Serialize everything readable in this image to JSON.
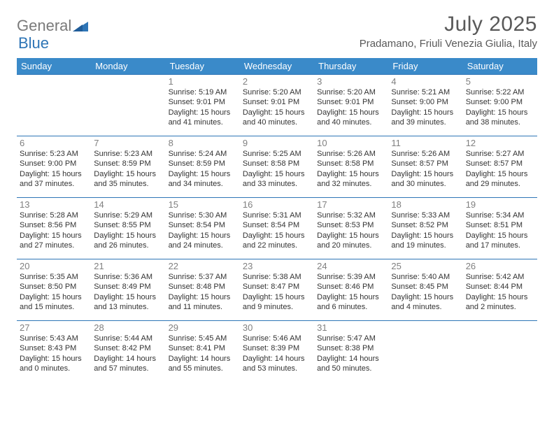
{
  "brand": {
    "part1": "General",
    "part2": "Blue"
  },
  "title": "July 2025",
  "location": "Pradamano, Friuli Venezia Giulia, Italy",
  "colors": {
    "header_bg": "#3a8ac9",
    "header_text": "#ffffff",
    "cell_border": "#2e75b6",
    "daynum": "#808080",
    "body_text": "#333333",
    "title_text": "#595959",
    "brand_gray": "#7a7a7a",
    "brand_blue": "#2e75b6",
    "page_bg": "#ffffff"
  },
  "day_headers": [
    "Sunday",
    "Monday",
    "Tuesday",
    "Wednesday",
    "Thursday",
    "Friday",
    "Saturday"
  ],
  "weeks": [
    [
      {
        "n": "",
        "l1": "",
        "l2": "",
        "l3": "",
        "l4": ""
      },
      {
        "n": "",
        "l1": "",
        "l2": "",
        "l3": "",
        "l4": ""
      },
      {
        "n": "1",
        "l1": "Sunrise: 5:19 AM",
        "l2": "Sunset: 9:01 PM",
        "l3": "Daylight: 15 hours",
        "l4": "and 41 minutes."
      },
      {
        "n": "2",
        "l1": "Sunrise: 5:20 AM",
        "l2": "Sunset: 9:01 PM",
        "l3": "Daylight: 15 hours",
        "l4": "and 40 minutes."
      },
      {
        "n": "3",
        "l1": "Sunrise: 5:20 AM",
        "l2": "Sunset: 9:01 PM",
        "l3": "Daylight: 15 hours",
        "l4": "and 40 minutes."
      },
      {
        "n": "4",
        "l1": "Sunrise: 5:21 AM",
        "l2": "Sunset: 9:00 PM",
        "l3": "Daylight: 15 hours",
        "l4": "and 39 minutes."
      },
      {
        "n": "5",
        "l1": "Sunrise: 5:22 AM",
        "l2": "Sunset: 9:00 PM",
        "l3": "Daylight: 15 hours",
        "l4": "and 38 minutes."
      }
    ],
    [
      {
        "n": "6",
        "l1": "Sunrise: 5:23 AM",
        "l2": "Sunset: 9:00 PM",
        "l3": "Daylight: 15 hours",
        "l4": "and 37 minutes."
      },
      {
        "n": "7",
        "l1": "Sunrise: 5:23 AM",
        "l2": "Sunset: 8:59 PM",
        "l3": "Daylight: 15 hours",
        "l4": "and 35 minutes."
      },
      {
        "n": "8",
        "l1": "Sunrise: 5:24 AM",
        "l2": "Sunset: 8:59 PM",
        "l3": "Daylight: 15 hours",
        "l4": "and 34 minutes."
      },
      {
        "n": "9",
        "l1": "Sunrise: 5:25 AM",
        "l2": "Sunset: 8:58 PM",
        "l3": "Daylight: 15 hours",
        "l4": "and 33 minutes."
      },
      {
        "n": "10",
        "l1": "Sunrise: 5:26 AM",
        "l2": "Sunset: 8:58 PM",
        "l3": "Daylight: 15 hours",
        "l4": "and 32 minutes."
      },
      {
        "n": "11",
        "l1": "Sunrise: 5:26 AM",
        "l2": "Sunset: 8:57 PM",
        "l3": "Daylight: 15 hours",
        "l4": "and 30 minutes."
      },
      {
        "n": "12",
        "l1": "Sunrise: 5:27 AM",
        "l2": "Sunset: 8:57 PM",
        "l3": "Daylight: 15 hours",
        "l4": "and 29 minutes."
      }
    ],
    [
      {
        "n": "13",
        "l1": "Sunrise: 5:28 AM",
        "l2": "Sunset: 8:56 PM",
        "l3": "Daylight: 15 hours",
        "l4": "and 27 minutes."
      },
      {
        "n": "14",
        "l1": "Sunrise: 5:29 AM",
        "l2": "Sunset: 8:55 PM",
        "l3": "Daylight: 15 hours",
        "l4": "and 26 minutes."
      },
      {
        "n": "15",
        "l1": "Sunrise: 5:30 AM",
        "l2": "Sunset: 8:54 PM",
        "l3": "Daylight: 15 hours",
        "l4": "and 24 minutes."
      },
      {
        "n": "16",
        "l1": "Sunrise: 5:31 AM",
        "l2": "Sunset: 8:54 PM",
        "l3": "Daylight: 15 hours",
        "l4": "and 22 minutes."
      },
      {
        "n": "17",
        "l1": "Sunrise: 5:32 AM",
        "l2": "Sunset: 8:53 PM",
        "l3": "Daylight: 15 hours",
        "l4": "and 20 minutes."
      },
      {
        "n": "18",
        "l1": "Sunrise: 5:33 AM",
        "l2": "Sunset: 8:52 PM",
        "l3": "Daylight: 15 hours",
        "l4": "and 19 minutes."
      },
      {
        "n": "19",
        "l1": "Sunrise: 5:34 AM",
        "l2": "Sunset: 8:51 PM",
        "l3": "Daylight: 15 hours",
        "l4": "and 17 minutes."
      }
    ],
    [
      {
        "n": "20",
        "l1": "Sunrise: 5:35 AM",
        "l2": "Sunset: 8:50 PM",
        "l3": "Daylight: 15 hours",
        "l4": "and 15 minutes."
      },
      {
        "n": "21",
        "l1": "Sunrise: 5:36 AM",
        "l2": "Sunset: 8:49 PM",
        "l3": "Daylight: 15 hours",
        "l4": "and 13 minutes."
      },
      {
        "n": "22",
        "l1": "Sunrise: 5:37 AM",
        "l2": "Sunset: 8:48 PM",
        "l3": "Daylight: 15 hours",
        "l4": "and 11 minutes."
      },
      {
        "n": "23",
        "l1": "Sunrise: 5:38 AM",
        "l2": "Sunset: 8:47 PM",
        "l3": "Daylight: 15 hours",
        "l4": "and 9 minutes."
      },
      {
        "n": "24",
        "l1": "Sunrise: 5:39 AM",
        "l2": "Sunset: 8:46 PM",
        "l3": "Daylight: 15 hours",
        "l4": "and 6 minutes."
      },
      {
        "n": "25",
        "l1": "Sunrise: 5:40 AM",
        "l2": "Sunset: 8:45 PM",
        "l3": "Daylight: 15 hours",
        "l4": "and 4 minutes."
      },
      {
        "n": "26",
        "l1": "Sunrise: 5:42 AM",
        "l2": "Sunset: 8:44 PM",
        "l3": "Daylight: 15 hours",
        "l4": "and 2 minutes."
      }
    ],
    [
      {
        "n": "27",
        "l1": "Sunrise: 5:43 AM",
        "l2": "Sunset: 8:43 PM",
        "l3": "Daylight: 15 hours",
        "l4": "and 0 minutes."
      },
      {
        "n": "28",
        "l1": "Sunrise: 5:44 AM",
        "l2": "Sunset: 8:42 PM",
        "l3": "Daylight: 14 hours",
        "l4": "and 57 minutes."
      },
      {
        "n": "29",
        "l1": "Sunrise: 5:45 AM",
        "l2": "Sunset: 8:41 PM",
        "l3": "Daylight: 14 hours",
        "l4": "and 55 minutes."
      },
      {
        "n": "30",
        "l1": "Sunrise: 5:46 AM",
        "l2": "Sunset: 8:39 PM",
        "l3": "Daylight: 14 hours",
        "l4": "and 53 minutes."
      },
      {
        "n": "31",
        "l1": "Sunrise: 5:47 AM",
        "l2": "Sunset: 8:38 PM",
        "l3": "Daylight: 14 hours",
        "l4": "and 50 minutes."
      },
      {
        "n": "",
        "l1": "",
        "l2": "",
        "l3": "",
        "l4": ""
      },
      {
        "n": "",
        "l1": "",
        "l2": "",
        "l3": "",
        "l4": ""
      }
    ]
  ]
}
